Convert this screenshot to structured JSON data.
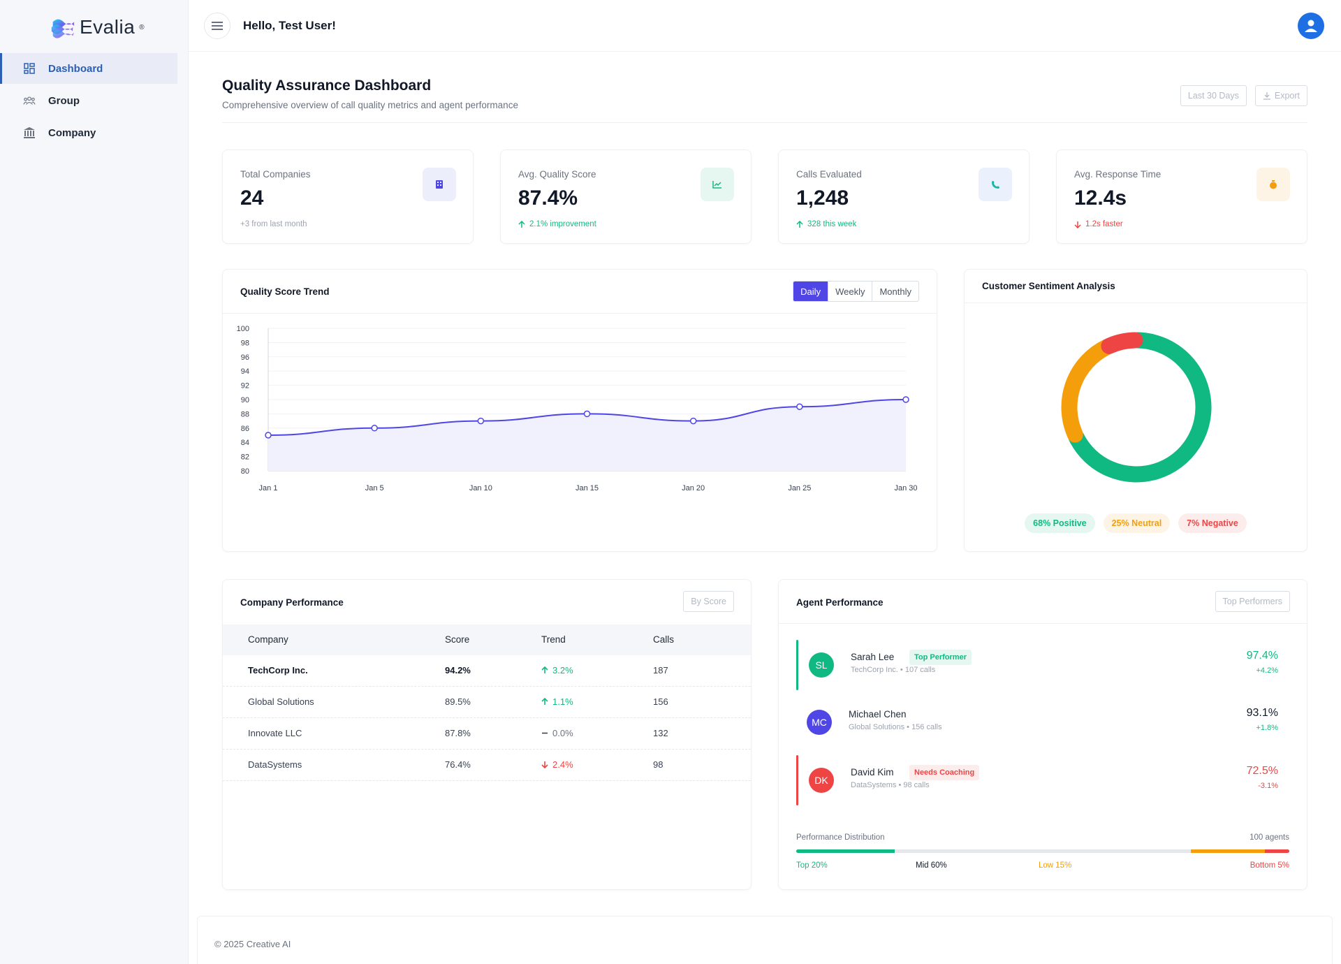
{
  "app": {
    "logo_text": "Evalia",
    "logo_mark": "®",
    "greeting": "Hello, Test User!"
  },
  "sidebar": {
    "items": [
      {
        "label": "Dashboard",
        "icon": "grid-icon",
        "active": true
      },
      {
        "label": "Group",
        "icon": "users-icon",
        "active": false
      },
      {
        "label": "Company",
        "icon": "building-icon",
        "active": false
      }
    ]
  },
  "page": {
    "title": "Quality Assurance Dashboard",
    "subtitle": "Comprehensive overview of call quality metrics and agent performance",
    "range_button": "Last 30 Days",
    "export_button": "Export"
  },
  "stats": [
    {
      "label": "Total Companies",
      "value": "24",
      "foot": "+3 from last month",
      "trend": "none",
      "icon": "building-icon",
      "icon_bg": "#eceefb",
      "icon_color": "#4f46e5"
    },
    {
      "label": "Avg. Quality Score",
      "value": "87.4%",
      "foot": "2.1% improvement",
      "trend": "up",
      "icon": "chart-icon",
      "icon_bg": "#e6f7f1",
      "icon_color": "#10b981"
    },
    {
      "label": "Calls Evaluated",
      "value": "1,248",
      "foot": "328 this week",
      "trend": "up",
      "icon": "phone-icon",
      "icon_bg": "#eaf1fd",
      "icon_color": "#14b8a6"
    },
    {
      "label": "Avg. Response Time",
      "value": "12.4s",
      "foot": "1.2s faster",
      "trend": "down",
      "icon": "stopwatch-icon",
      "icon_bg": "#fef4e6",
      "icon_color": "#f59e0b"
    }
  ],
  "trend_panel": {
    "title": "Quality Score Trend",
    "tabs": [
      "Daily",
      "Weekly",
      "Monthly"
    ],
    "active_tab": "Daily"
  },
  "chart_data": {
    "type": "line",
    "title": "Quality Score Trend",
    "categories": [
      "Jan 1",
      "Jan 5",
      "Jan 10",
      "Jan 15",
      "Jan 20",
      "Jan 25",
      "Jan 30"
    ],
    "series": [
      {
        "values": [
          85,
          86,
          87,
          88,
          87,
          89,
          90
        ]
      }
    ],
    "ylim": [
      80,
      100
    ],
    "yticks": [
      80,
      82,
      84,
      86,
      88,
      90,
      92,
      94,
      96,
      98,
      100
    ],
    "grid": true,
    "line_color": "#4f46e5",
    "fill_color": "#f1f0fd"
  },
  "sentiment": {
    "title": "Customer Sentiment Analysis",
    "chart_data": {
      "type": "pie",
      "labels": [
        "Positive",
        "Neutral",
        "Negative"
      ],
      "values": [
        68,
        25,
        7
      ],
      "colors": [
        "#10b981",
        "#f59e0b",
        "#ef4444"
      ]
    },
    "pills": [
      {
        "text": "68% Positive",
        "color": "#10b981",
        "bg": "#e6f7f1"
      },
      {
        "text": "25% Neutral",
        "color": "#f59e0b",
        "bg": "#fef4e6"
      },
      {
        "text": "7% Negative",
        "color": "#ef4444",
        "bg": "#fdecec"
      }
    ]
  },
  "companies": {
    "title": "Company Performance",
    "sort_button": "By Score",
    "columns": [
      "Company",
      "Score",
      "Trend",
      "Calls"
    ],
    "rows": [
      {
        "company": "TechCorp Inc.",
        "score": "94.2%",
        "trend": "3.2%",
        "dir": "up",
        "calls": "187",
        "bold": true
      },
      {
        "company": "Global Solutions",
        "score": "89.5%",
        "trend": "1.1%",
        "dir": "up",
        "calls": "156",
        "bold": false
      },
      {
        "company": "Innovate LLC",
        "score": "87.8%",
        "trend": "0.0%",
        "dir": "flat",
        "calls": "132",
        "bold": false
      },
      {
        "company": "DataSystems",
        "score": "76.4%",
        "trend": "2.4%",
        "dir": "down",
        "calls": "98",
        "bold": false
      }
    ]
  },
  "agents": {
    "title": "Agent Performance",
    "filter_button": "Top Performers",
    "list": [
      {
        "initials": "SL",
        "name": "Sarah Lee",
        "meta": "TechCorp Inc. • 107 calls",
        "badge": "Top Performer",
        "badge_type": "top",
        "score": "97.4%",
        "delta": "+4.2%",
        "color": "#10b981",
        "bar": true
      },
      {
        "initials": "MC",
        "name": "Michael Chen",
        "meta": "Global Solutions • 156 calls",
        "badge": "",
        "badge_type": "none",
        "score": "93.1%",
        "delta": "+1.8%",
        "color": "#4f46e5",
        "bar": false
      },
      {
        "initials": "DK",
        "name": "David Kim",
        "meta": "DataSystems • 98 calls",
        "badge": "Needs Coaching",
        "badge_type": "coach",
        "score": "72.5%",
        "delta": "-3.1%",
        "color": "#ef4444",
        "bar": true
      }
    ],
    "distribution": {
      "label": "Performance Distribution",
      "total": "100 agents",
      "segments": [
        {
          "label": "Top 20%",
          "fraction": 0.2,
          "color": "#10b981"
        },
        {
          "label": "Mid 60%",
          "fraction": 0.6,
          "color": "#e5e7eb"
        },
        {
          "label": "Low 15%",
          "fraction": 0.15,
          "color": "#f59e0b"
        },
        {
          "label": "Bottom 5%",
          "fraction": 0.05,
          "color": "#ef4444"
        }
      ]
    }
  },
  "footer": {
    "text": "© 2025 Creative AI"
  }
}
